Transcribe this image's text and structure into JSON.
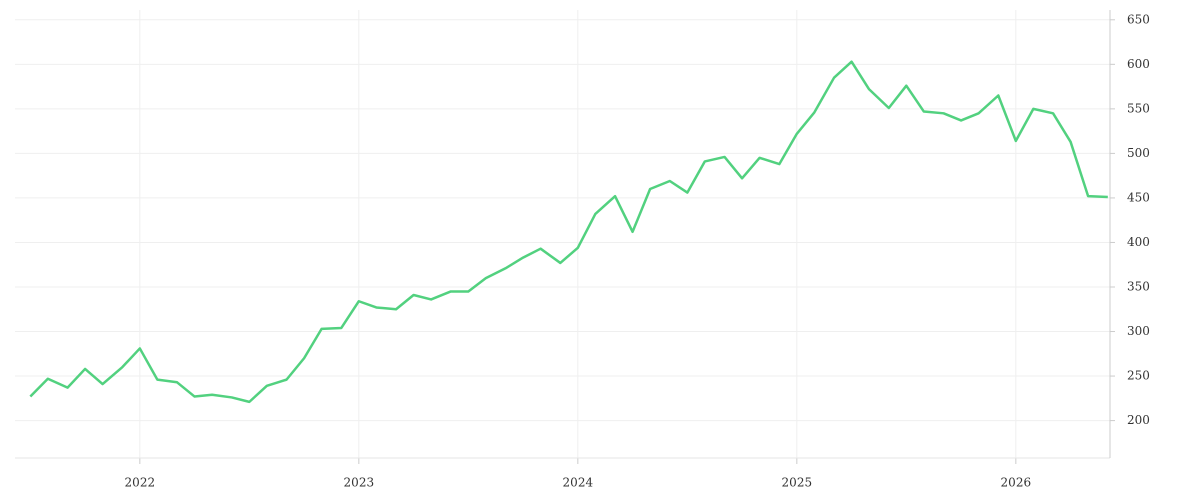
{
  "chart_data": {
    "type": "line",
    "x": [
      2021.5,
      2021.58,
      2021.67,
      2021.75,
      2021.83,
      2021.92,
      2022.0,
      2022.08,
      2022.17,
      2022.25,
      2022.33,
      2022.42,
      2022.5,
      2022.58,
      2022.67,
      2022.75,
      2022.83,
      2022.92,
      2023.0,
      2023.08,
      2023.17,
      2023.25,
      2023.33,
      2023.42,
      2023.5,
      2023.58,
      2023.67,
      2023.75,
      2023.83,
      2023.92,
      2024.0,
      2024.08,
      2024.17,
      2024.25,
      2024.33,
      2024.42,
      2024.5,
      2024.58,
      2024.67,
      2024.75,
      2024.83,
      2024.92,
      2025.0,
      2025.08,
      2025.17,
      2025.25,
      2025.33,
      2025.42,
      2025.5,
      2025.58,
      2025.67,
      2025.75,
      2025.83,
      2025.92,
      2026.0,
      2026.08,
      2026.17,
      2026.25,
      2026.33,
      2026.42
    ],
    "values": [
      227,
      247,
      237,
      258,
      241,
      260,
      281,
      246,
      243,
      227,
      229,
      226,
      221,
      239,
      246,
      270,
      303,
      304,
      334,
      327,
      325,
      341,
      336,
      345,
      345,
      360,
      371,
      383,
      393,
      377,
      394,
      432,
      452,
      412,
      460,
      469,
      456,
      491,
      496,
      472,
      495,
      488,
      522,
      546,
      585,
      603,
      572,
      551,
      576,
      547,
      545,
      537,
      545,
      565,
      514,
      550,
      545,
      513,
      452,
      451
    ],
    "color": "#52d17f",
    "xlim": [
      2021.43,
      2026.43
    ],
    "xticks": [
      2022,
      2023,
      2024,
      2025,
      2026
    ],
    "ylim": [
      158,
      661
    ],
    "yticks": [
      200,
      250,
      300,
      350,
      400,
      450,
      500,
      550,
      600,
      650
    ],
    "grid": true
  }
}
